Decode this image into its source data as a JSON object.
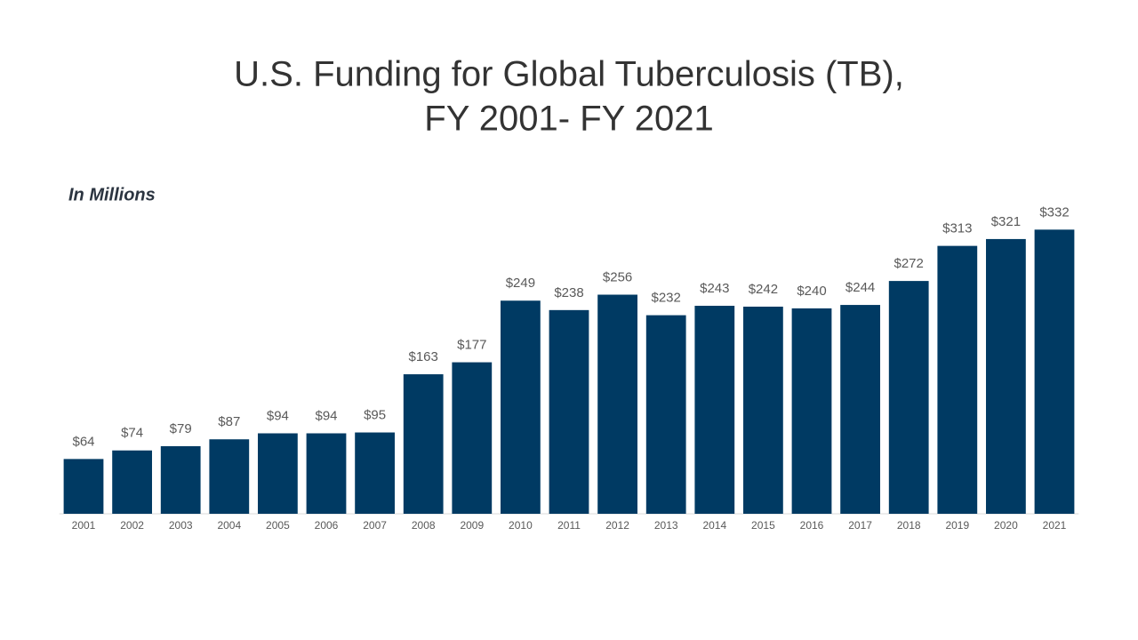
{
  "chart_data": {
    "type": "bar",
    "title": [
      "U.S. Funding for Global Tuberculosis (TB),",
      "FY 2001- FY 2021"
    ],
    "subtitle": "In Millions",
    "categories": [
      "2001",
      "2002",
      "2003",
      "2004",
      "2005",
      "2006",
      "2007",
      "2008",
      "2009",
      "2010",
      "2011",
      "2012",
      "2013",
      "2014",
      "2015",
      "2016",
      "2017",
      "2018",
      "2019",
      "2020",
      "2021"
    ],
    "values": [
      64,
      74,
      79,
      87,
      94,
      94,
      95,
      163,
      177,
      249,
      238,
      256,
      232,
      243,
      242,
      240,
      244,
      272,
      313,
      321,
      332
    ],
    "value_labels": [
      "$64",
      "$74",
      "$79",
      "$87",
      "$94",
      "$94",
      "$95",
      "$163",
      "$177",
      "$249",
      "$238",
      "$256",
      "$232",
      "$243",
      "$242",
      "$240",
      "$244",
      "$272",
      "$313",
      "$321",
      "$332"
    ],
    "color": "#003a63",
    "ylim": [
      0,
      350
    ]
  }
}
